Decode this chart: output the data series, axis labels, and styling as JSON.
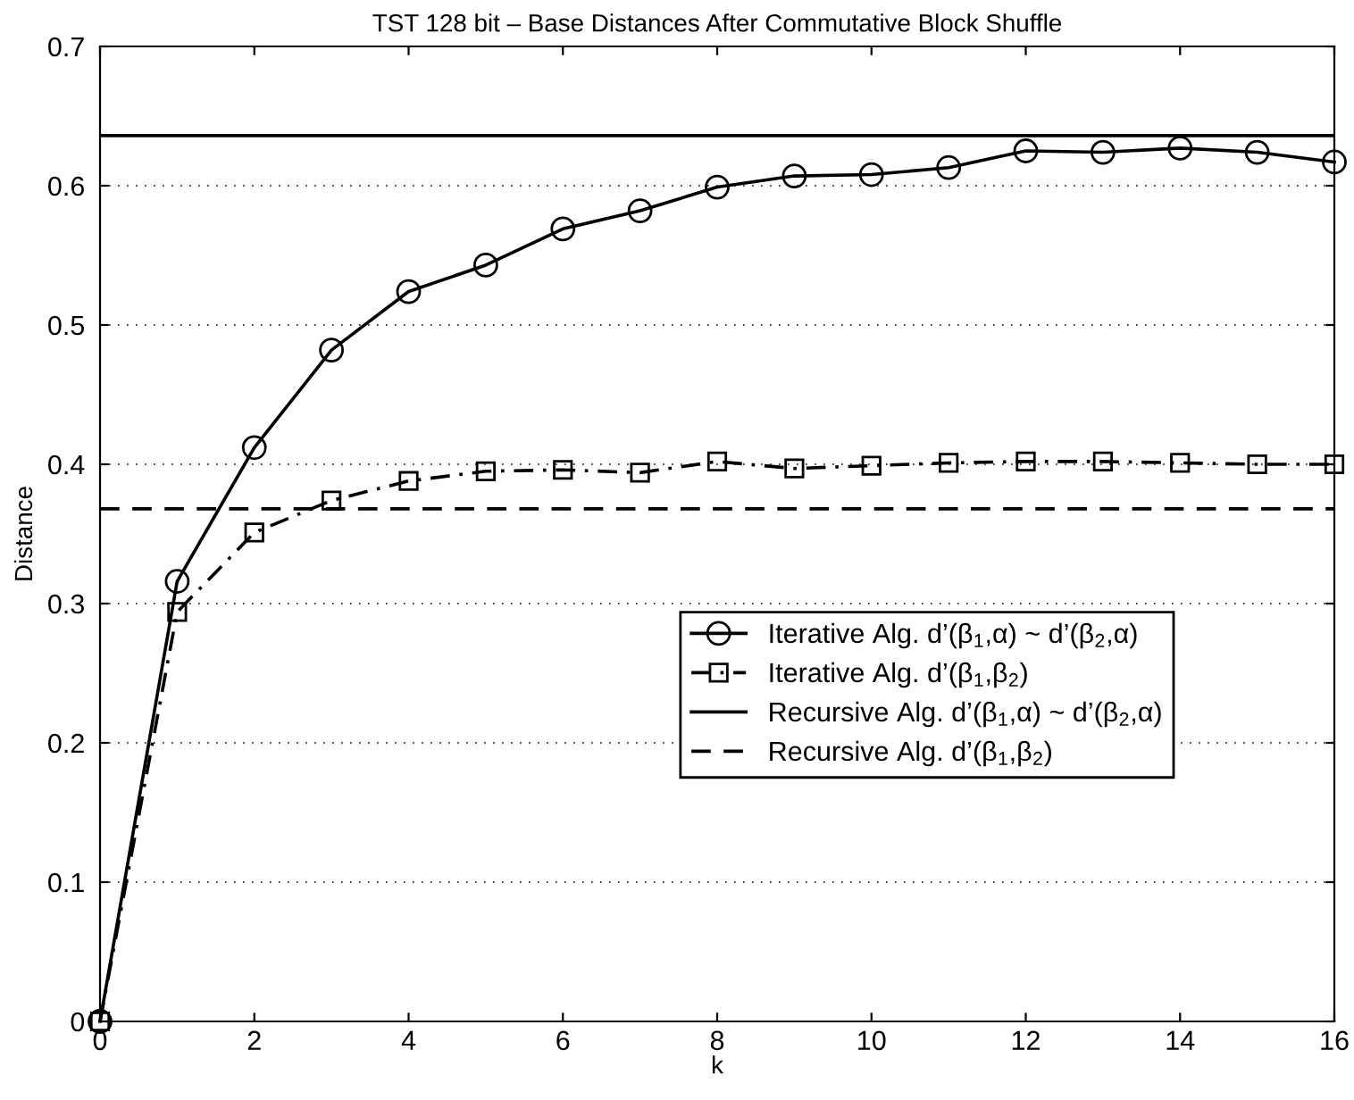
{
  "chart_data": {
    "type": "line",
    "title": "TST 128 bit – Base Distances After Commutative Block Shuffle",
    "xlabel": "k",
    "ylabel": "Distance",
    "x": [
      0,
      1,
      2,
      3,
      4,
      5,
      6,
      7,
      8,
      9,
      10,
      11,
      12,
      13,
      14,
      15,
      16
    ],
    "series": [
      {
        "name": "Iterative Alg. d’(β$_{1}$,α) ~ d’(β$_{2}$,α)",
        "color": "#000000",
        "marker": "circle",
        "line_style": "solid",
        "values": [
          0,
          0.316,
          0.412,
          0.482,
          0.524,
          0.543,
          0.569,
          0.582,
          0.599,
          0.607,
          0.608,
          0.613,
          0.625,
          0.624,
          0.627,
          0.624,
          0.617
        ]
      },
      {
        "name": "Iterative Alg. d’(β$_{1}$,β$_{2}$)",
        "color": "#000000",
        "marker": "square",
        "line_style": "dashdot",
        "values": [
          0,
          0.294,
          0.351,
          0.374,
          0.388,
          0.395,
          0.396,
          0.394,
          0.402,
          0.397,
          0.399,
          0.401,
          0.402,
          0.402,
          0.401,
          0.4,
          0.4
        ]
      }
    ],
    "ref_lines": [
      {
        "axis": "y",
        "value": 0.636,
        "label": "Recursive Alg. d’(β$_{1}$,α) ~ d’(β$_{2}$,α)",
        "color": "#000000",
        "line_style": "solid"
      },
      {
        "axis": "y",
        "value": 0.368,
        "label": "Recursive Alg. d’(β$_{1}$,β$_{2}$)",
        "color": "#000000",
        "line_style": "dashed"
      }
    ],
    "xlim": [
      0,
      16
    ],
    "xticks": [
      0,
      2,
      4,
      6,
      8,
      10,
      12,
      14,
      16
    ],
    "ylim": [
      0,
      0.7
    ],
    "yticks": [
      0,
      0.1,
      0.2,
      0.3,
      0.4,
      0.5,
      0.6,
      0.7
    ],
    "grid": "y",
    "legend": "center right"
  }
}
